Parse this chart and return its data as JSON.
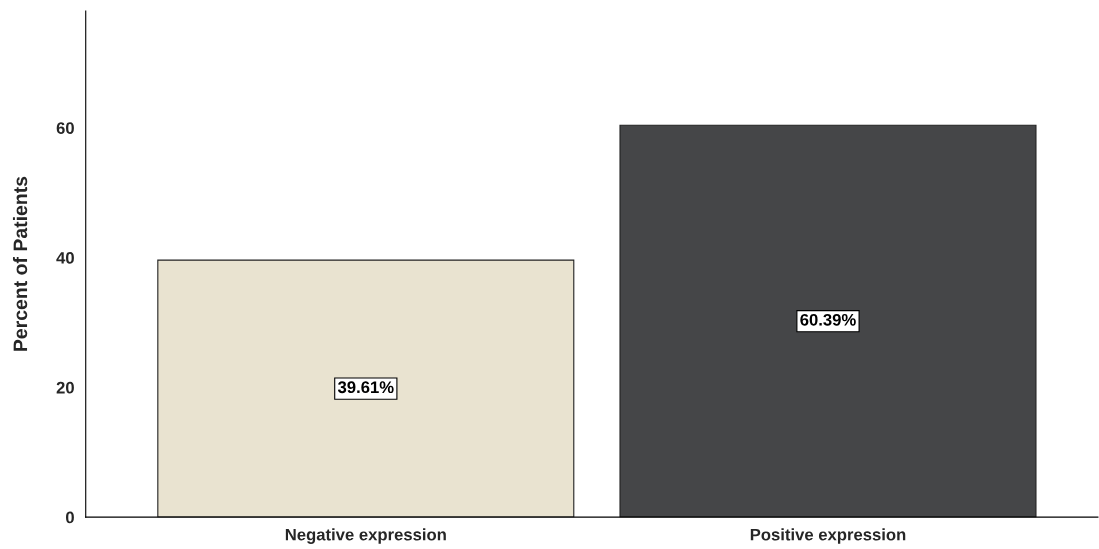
{
  "chart_data": {
    "type": "bar",
    "ylabel": "Percent of Patients",
    "categories": [
      "Negative expression",
      "Positive expression"
    ],
    "values": [
      39.61,
      60.39
    ],
    "colors": [
      "#e9e3d0",
      "#454648"
    ],
    "value_labels": [
      "39.61%",
      "60.39%"
    ],
    "ylim": [
      0,
      78
    ],
    "yticks": [
      0,
      20,
      40,
      60
    ],
    "grid": false
  }
}
